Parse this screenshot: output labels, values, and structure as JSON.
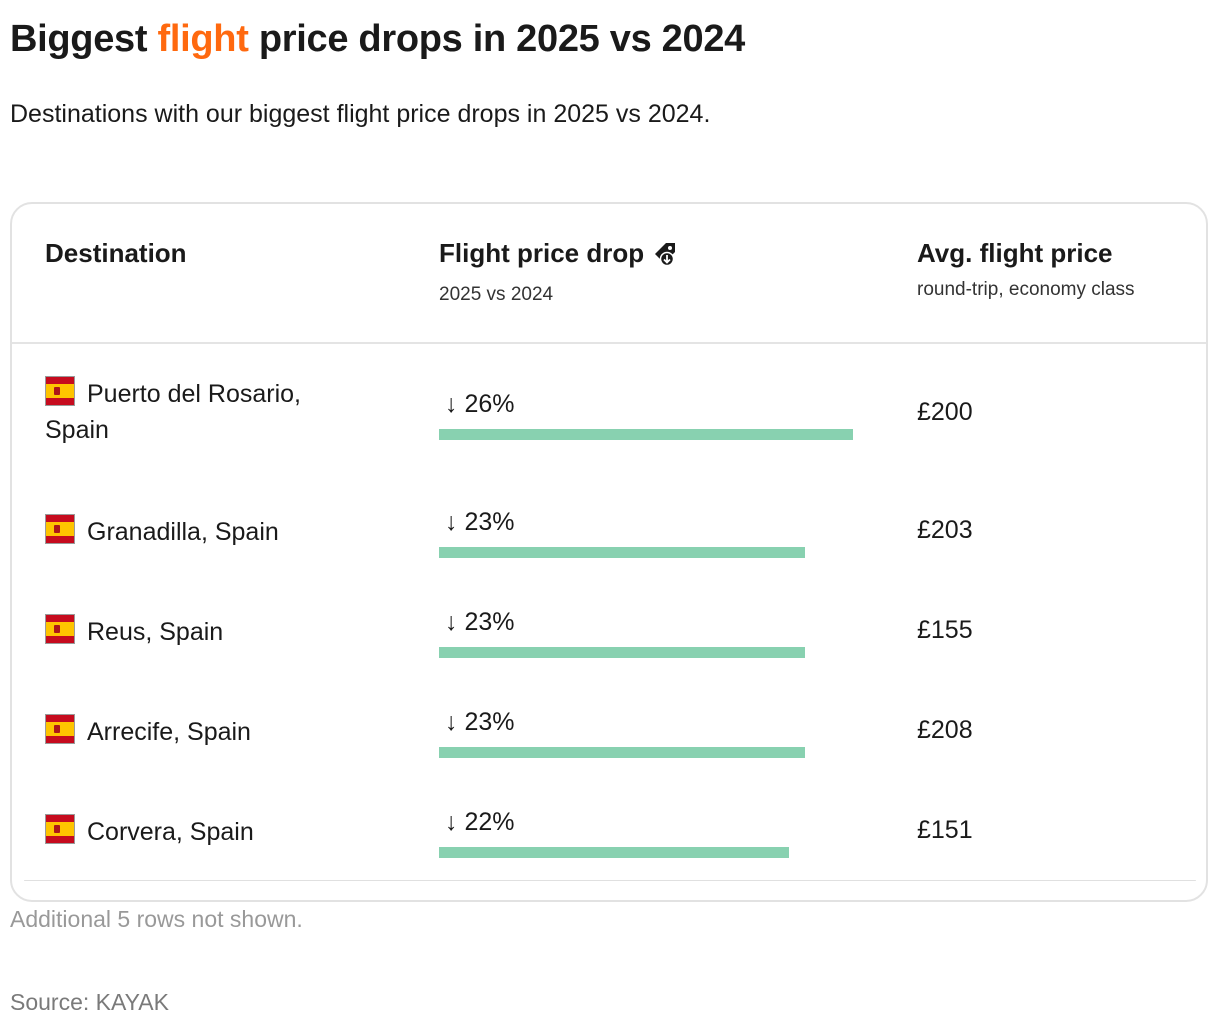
{
  "title": {
    "before": "Biggest ",
    "accent": "flight",
    "after": " price drops in 2025 vs 2024",
    "accent_color": "#ff690f"
  },
  "subtitle": "Destinations with our biggest flight price drops in 2025 vs 2024.",
  "columns": {
    "destination": {
      "title": "Destination"
    },
    "drop": {
      "title": "Flight price drop",
      "subtitle": "2025 vs 2024",
      "icon": "price-tag-down-icon"
    },
    "price": {
      "title": "Avg. flight price",
      "subtitle": "round-trip, economy class"
    }
  },
  "bar_color": "#88d1b0",
  "chart_data": {
    "type": "table",
    "columns": [
      "Destination",
      "Flight price drop",
      "Avg. flight price"
    ],
    "rows": [
      {
        "destination": "Puerto del Rosario, Spain",
        "flag": "spain-flag-icon",
        "drop_label": "↓ 26%",
        "drop": 26,
        "price": "£200"
      },
      {
        "destination": "Granadilla, Spain",
        "flag": "spain-flag-icon",
        "drop_label": "↓ 23%",
        "drop": 23,
        "price": "£203"
      },
      {
        "destination": "Reus, Spain",
        "flag": "spain-flag-icon",
        "drop_label": "↓ 23%",
        "drop": 23,
        "price": "£155"
      },
      {
        "destination": "Arrecife, Spain",
        "flag": "spain-flag-icon",
        "drop_label": "↓ 23%",
        "drop": 23,
        "price": "£208"
      },
      {
        "destination": "Corvera, Spain",
        "flag": "spain-flag-icon",
        "drop_label": "↓ 22%",
        "drop": 22,
        "price": "£151"
      }
    ]
  },
  "note": "Additional 5 rows not shown.",
  "source": "Source: KAYAK"
}
